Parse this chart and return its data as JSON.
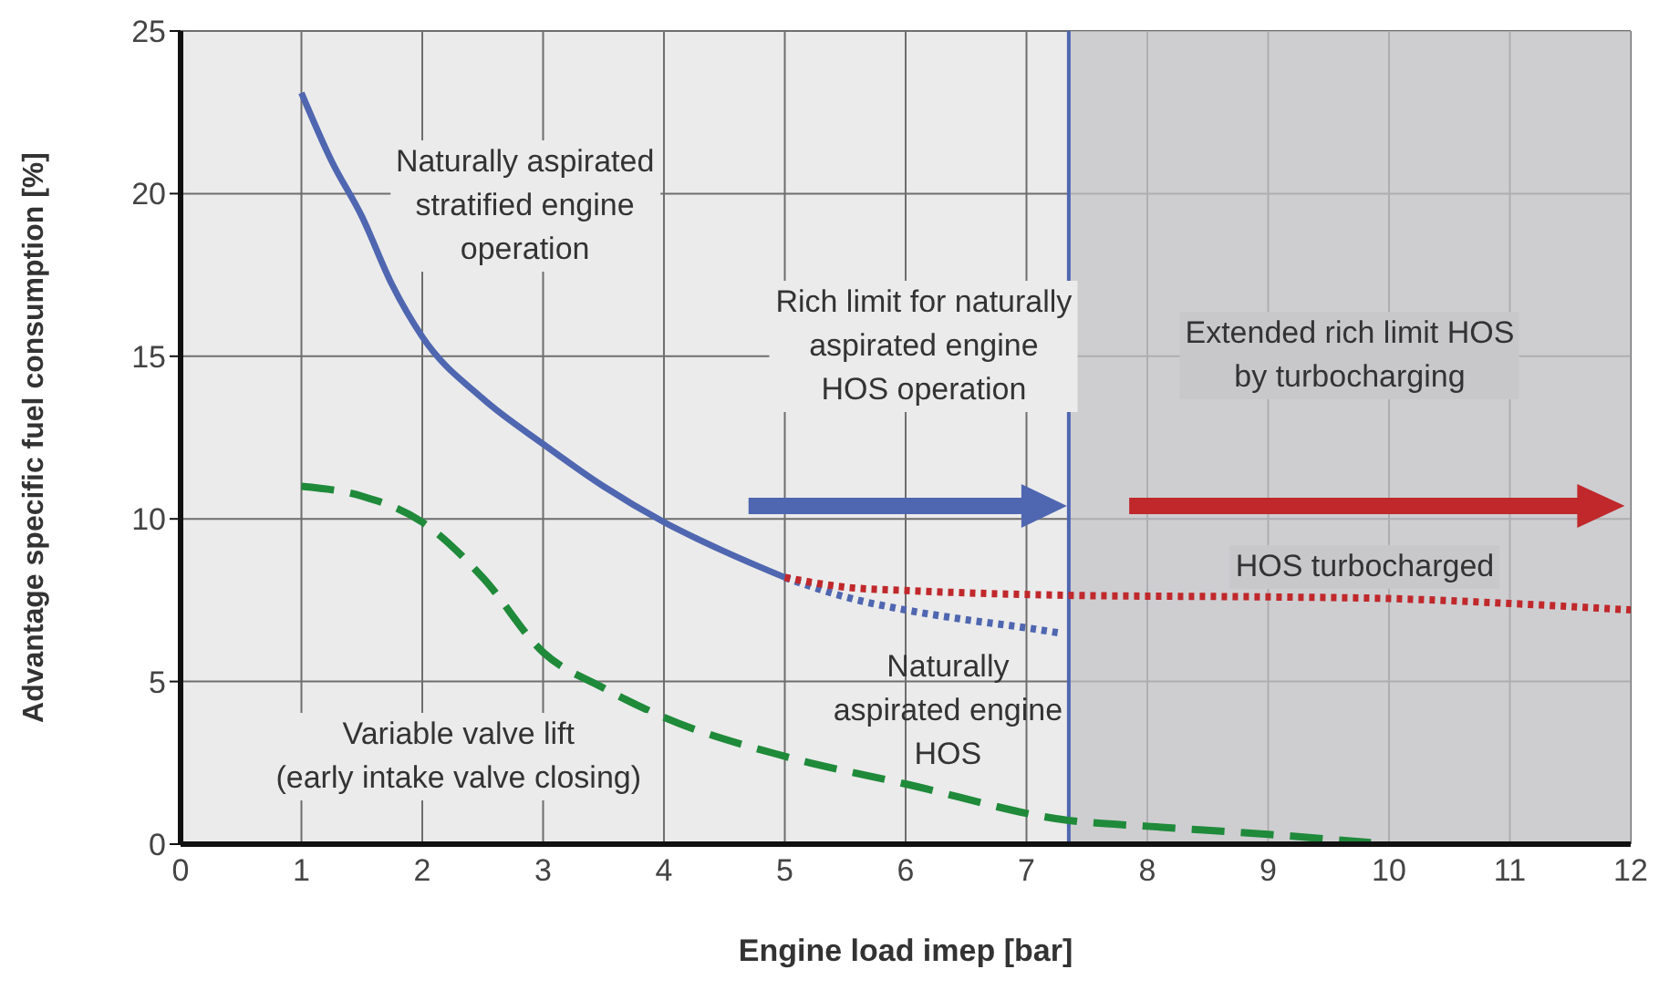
{
  "chart_data": {
    "type": "line",
    "xlabel": "Engine load imep [bar]",
    "ylabel": "Advantage specific fuel consumption [%]",
    "xlim": [
      0,
      12
    ],
    "xticks": [
      0,
      1,
      2,
      3,
      4,
      5,
      6,
      7,
      8,
      9,
      10,
      11,
      12
    ],
    "ylim": [
      0,
      25
    ],
    "yticks": [
      0,
      5,
      10,
      15,
      20,
      25
    ],
    "grid": true,
    "marker": "none",
    "series": [
      {
        "name": "Naturally aspirated\nstratified engine\noperation",
        "color": "#4f66b0",
        "line_style": "solid",
        "x": [
          1,
          1.25,
          1.5,
          1.75,
          2,
          2.5,
          3,
          3.5,
          4,
          4.5,
          5
        ],
        "values": [
          23.1,
          21,
          19.3,
          17.2,
          15.6,
          13.7,
          12.3,
          11,
          9.9,
          9,
          8.2
        ]
      },
      {
        "name": "Naturally\naspirated engine\nHOS",
        "color": "#4f66b0",
        "line_style": "dotted",
        "x": [
          5,
          5.5,
          6,
          6.5,
          7,
          7.26
        ],
        "values": [
          8.2,
          7.6,
          7.2,
          6.9,
          6.65,
          6.5
        ]
      },
      {
        "name": "HOS turbocharged",
        "color": "#c0282b",
        "line_style": "dotted",
        "x": [
          5,
          5.5,
          6,
          7.35,
          9,
          10,
          11,
          12
        ],
        "values": [
          8.2,
          7.9,
          7.8,
          7.65,
          7.6,
          7.55,
          7.4,
          7.2
        ]
      },
      {
        "name": "Variable valve lift\n(early intake valve closing)",
        "color": "#1f8a3a",
        "line_style": "dashed",
        "x": [
          1,
          1.5,
          2,
          2.5,
          3,
          3.5,
          4,
          5,
          6,
          7.35,
          8,
          9,
          9.85
        ],
        "values": [
          11,
          10.7,
          9.9,
          8.2,
          5.9,
          4.8,
          3.9,
          2.7,
          1.85,
          0.73,
          0.55,
          0.3,
          0.05
        ]
      }
    ],
    "ref_lines": [
      {
        "axis": "x",
        "value": 7.35,
        "label": "Rich limit for naturally\naspirated engine\nHOS operation",
        "color": "#4f66b0"
      }
    ],
    "bands": [
      {
        "axis": "x",
        "from": 7.35,
        "to": 12,
        "label": "Extended rich limit HOS\nby turbocharging",
        "color": "#c4c4c8"
      }
    ]
  }
}
